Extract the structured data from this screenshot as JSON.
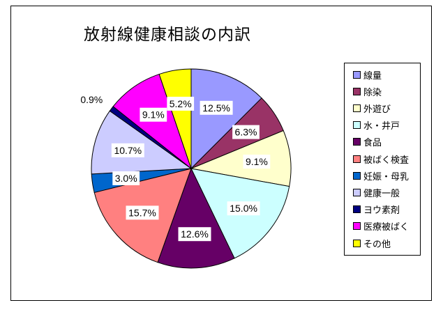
{
  "chart_data": {
    "type": "pie",
    "title": "放射線健康相談の内訳",
    "legend_position": "right",
    "slices": [
      {
        "label": "線量",
        "value": 12.5,
        "display": "12.5%",
        "color": "#9999FF"
      },
      {
        "label": "除染",
        "value": 6.3,
        "display": "6.3%",
        "color": "#993366"
      },
      {
        "label": "外遊び",
        "value": 9.1,
        "display": "9.1%",
        "color": "#FFFFCC"
      },
      {
        "label": "水・井戸",
        "value": 15.0,
        "display": "15.0%",
        "color": "#CCFFFF"
      },
      {
        "label": "食品",
        "value": 12.6,
        "display": "12.6%",
        "color": "#660066"
      },
      {
        "label": "被ばく検査",
        "value": 15.7,
        "display": "15.7%",
        "color": "#FF8080"
      },
      {
        "label": "妊娠・母乳",
        "value": 3.0,
        "display": "3.0%",
        "color": "#0066CC"
      },
      {
        "label": "健康一般",
        "value": 10.7,
        "display": "10.7%",
        "color": "#CCCCFF"
      },
      {
        "label": "ヨウ素剤",
        "value": 0.9,
        "display": "0.9%",
        "color": "#000080"
      },
      {
        "label": "医療被ばく",
        "value": 9.1,
        "display": "9.1%",
        "color": "#FF00FF"
      },
      {
        "label": "その他",
        "value": 5.2,
        "display": "5.2%",
        "color": "#FFFF00"
      }
    ]
  }
}
